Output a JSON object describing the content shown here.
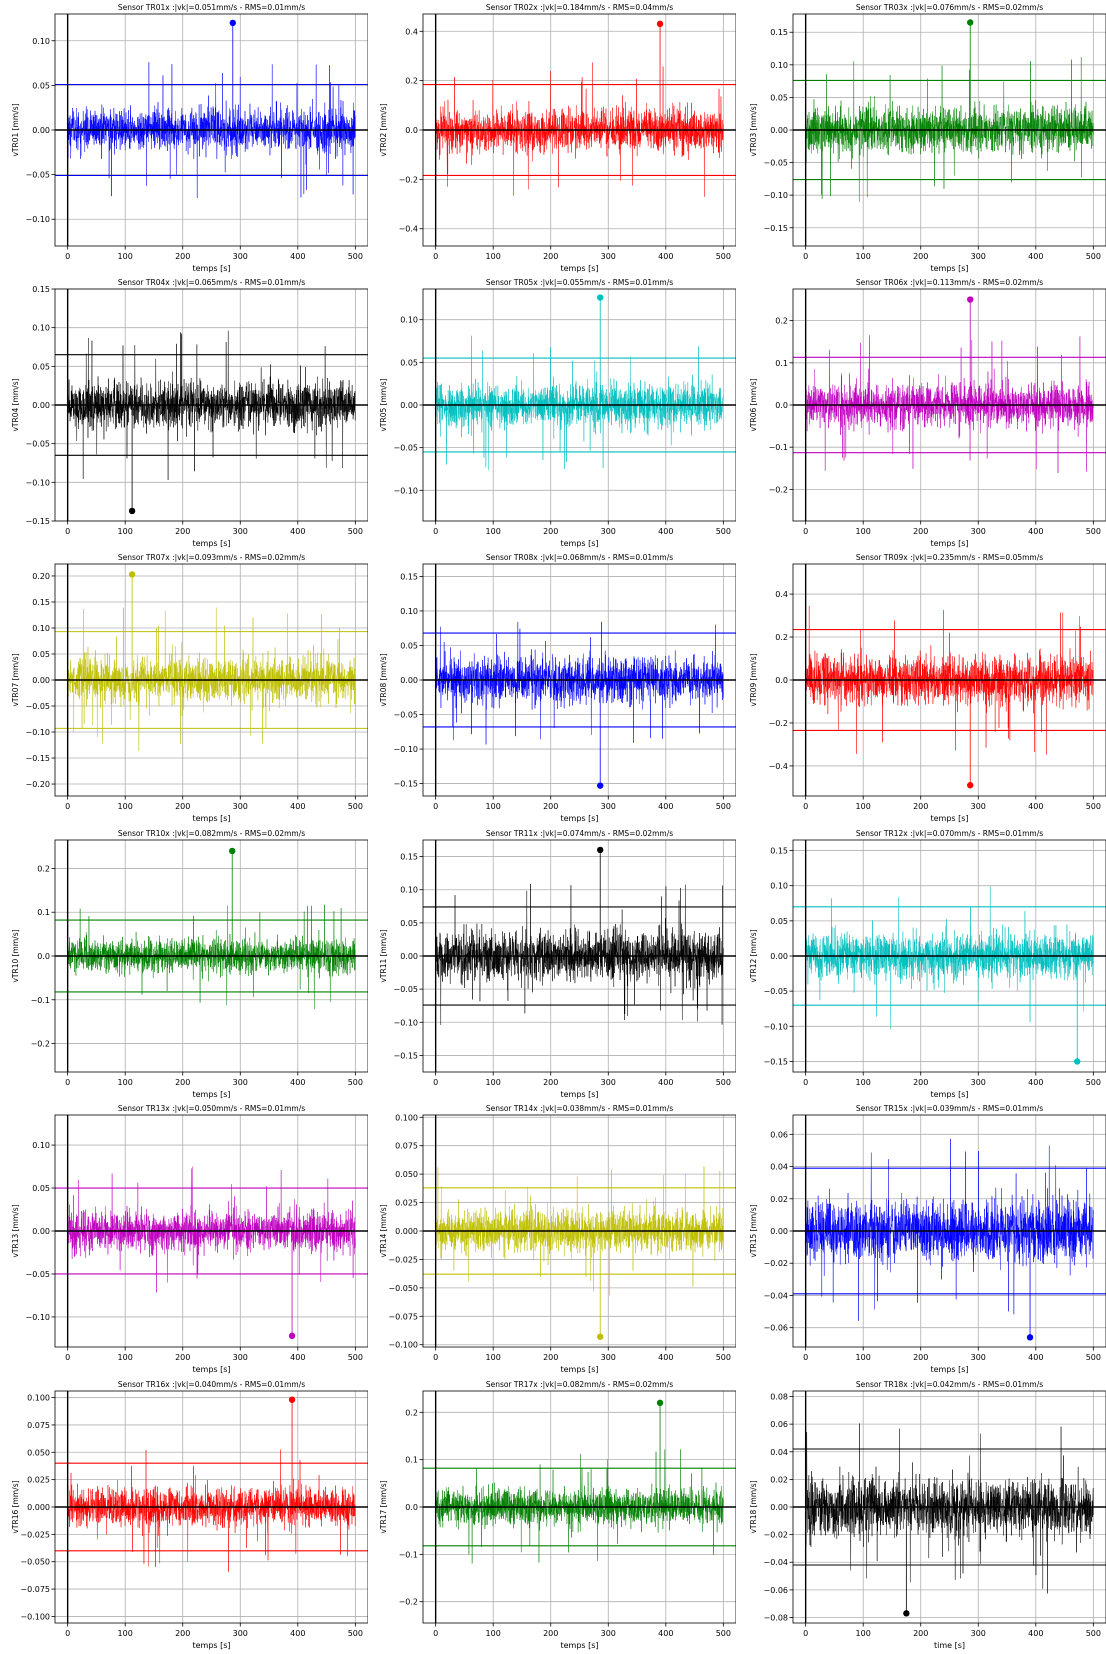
{
  "chart_data": [
    {
      "type": "line",
      "title": "Sensor TR01x :|vk|=0.051mm/s - RMS=0.01mm/s",
      "xlabel": "temps [s]",
      "ylabel": "vTR01 [mm/s]",
      "color": "#0000ff",
      "xlim": [
        -22,
        522
      ],
      "ylim": [
        -0.13,
        0.13
      ],
      "xticks": [
        0,
        100,
        200,
        300,
        400,
        500
      ],
      "yticks": [
        -0.1,
        -0.05,
        0.0,
        0.05,
        0.1
      ],
      "ytick_labels": [
        "−0.10",
        "−0.05",
        "0.00",
        "0.05",
        "0.10"
      ],
      "noise_amp": 0.028,
      "threshold": 0.051,
      "peak": {
        "x": 287,
        "y": 0.12
      }
    },
    {
      "type": "line",
      "title": "Sensor TR02x :|vk|=0.184mm/s - RMS=0.04mm/s",
      "xlabel": "temps [s]",
      "ylabel": "vTR02 [mm/s]",
      "color": "#ff0000",
      "xlim": [
        -22,
        522
      ],
      "ylim": [
        -0.47,
        0.47
      ],
      "xticks": [
        0,
        100,
        200,
        300,
        400,
        500
      ],
      "yticks": [
        -0.4,
        -0.2,
        0.0,
        0.2,
        0.4
      ],
      "ytick_labels": [
        "−0.4",
        "−0.2",
        "0.0",
        "0.2",
        "0.4"
      ],
      "noise_amp": 0.1,
      "threshold": 0.184,
      "peak": {
        "x": 390,
        "y": 0.43
      }
    },
    {
      "type": "line",
      "title": "Sensor TR03x :|vk|=0.076mm/s - RMS=0.02mm/s",
      "xlabel": "temps [s]",
      "ylabel": "vTR03 [mm/s]",
      "color": "#008000",
      "xlim": [
        -22,
        522
      ],
      "ylim": [
        -0.178,
        0.178
      ],
      "xticks": [
        0,
        100,
        200,
        300,
        400,
        500
      ],
      "yticks": [
        -0.15,
        -0.1,
        -0.05,
        0.0,
        0.05,
        0.1,
        0.15
      ],
      "ytick_labels": [
        "−0.15",
        "−0.10",
        "−0.05",
        "0.00",
        "0.05",
        "0.10",
        "0.15"
      ],
      "noise_amp": 0.042,
      "threshold": 0.076,
      "peak": {
        "x": 286,
        "y": 0.165
      }
    },
    {
      "type": "line",
      "title": "Sensor TR04x :|vk|=0.065mm/s - RMS=0.01mm/s",
      "xlabel": "temps [s]",
      "ylabel": "vTR04 [mm/s]",
      "color": "#000000",
      "xlim": [
        -22,
        522
      ],
      "ylim": [
        -0.15,
        0.15
      ],
      "xticks": [
        0,
        100,
        200,
        300,
        400,
        500
      ],
      "yticks": [
        -0.15,
        -0.1,
        -0.05,
        0.0,
        0.05,
        0.1,
        0.15
      ],
      "ytick_labels": [
        "−0.15",
        "−0.10",
        "−0.05",
        "0.00",
        "0.05",
        "0.10",
        "0.15"
      ],
      "noise_amp": 0.036,
      "threshold": 0.065,
      "peak": {
        "x": 112,
        "y": -0.137
      }
    },
    {
      "type": "line",
      "title": "Sensor TR05x :|vk|=0.055mm/s - RMS=0.01mm/s",
      "xlabel": "temps [s]",
      "ylabel": "vTR05 [mm/s]",
      "color": "#00bfbf",
      "xlim": [
        -22,
        522
      ],
      "ylim": [
        -0.136,
        0.136
      ],
      "xticks": [
        0,
        100,
        200,
        300,
        400,
        500
      ],
      "yticks": [
        -0.1,
        -0.05,
        0.0,
        0.05,
        0.1
      ],
      "ytick_labels": [
        "−0.10",
        "−0.05",
        "0.00",
        "0.05",
        "0.10"
      ],
      "noise_amp": 0.03,
      "threshold": 0.055,
      "peak": {
        "x": 286,
        "y": 0.126
      }
    },
    {
      "type": "line",
      "title": "Sensor TR06x :|vk|=0.113mm/s - RMS=0.02mm/s",
      "xlabel": "temps [s]",
      "ylabel": "vTR06 [mm/s]",
      "color": "#bf00bf",
      "xlim": [
        -22,
        522
      ],
      "ylim": [
        -0.275,
        0.275
      ],
      "xticks": [
        0,
        100,
        200,
        300,
        400,
        500
      ],
      "yticks": [
        -0.2,
        -0.1,
        0.0,
        0.1,
        0.2
      ],
      "ytick_labels": [
        "−0.2",
        "−0.1",
        "0.0",
        "0.1",
        "0.2"
      ],
      "noise_amp": 0.06,
      "threshold": 0.113,
      "peak": {
        "x": 286,
        "y": 0.25
      }
    },
    {
      "type": "line",
      "title": "Sensor TR07x :|vk|=0.093mm/s - RMS=0.02mm/s",
      "xlabel": "temps [s]",
      "ylabel": "vTR07 [mm/s]",
      "color": "#bfbf00",
      "xlim": [
        -22,
        522
      ],
      "ylim": [
        -0.223,
        0.223
      ],
      "xticks": [
        0,
        100,
        200,
        300,
        400,
        500
      ],
      "yticks": [
        -0.2,
        -0.15,
        -0.1,
        -0.05,
        0.0,
        0.05,
        0.1,
        0.15,
        0.2
      ],
      "ytick_labels": [
        "−0.20",
        "−0.15",
        "−0.10",
        "−0.05",
        "0.00",
        "0.05",
        "0.10",
        "0.15",
        "0.20"
      ],
      "noise_amp": 0.05,
      "threshold": 0.093,
      "peak": {
        "x": 112,
        "y": 0.203
      }
    },
    {
      "type": "line",
      "title": "Sensor TR08x :|vk|=0.068mm/s - RMS=0.01mm/s",
      "xlabel": "temps [s]",
      "ylabel": "vTR08 [mm/s]",
      "color": "#0000ff",
      "xlim": [
        -22,
        522
      ],
      "ylim": [
        -0.168,
        0.168
      ],
      "xticks": [
        0,
        100,
        200,
        300,
        400,
        500
      ],
      "yticks": [
        -0.15,
        -0.1,
        -0.05,
        0.0,
        0.05,
        0.1,
        0.15
      ],
      "ytick_labels": [
        "−0.15",
        "−0.10",
        "−0.05",
        "0.00",
        "0.05",
        "0.10",
        "0.15"
      ],
      "noise_amp": 0.038,
      "threshold": 0.068,
      "peak": {
        "x": 286,
        "y": -0.153
      }
    },
    {
      "type": "line",
      "title": "Sensor TR09x :|vk|=0.235mm/s - RMS=0.05mm/s",
      "xlabel": "temps [s]",
      "ylabel": "vTR09 [mm/s]",
      "color": "#ff0000",
      "xlim": [
        -22,
        522
      ],
      "ylim": [
        -0.54,
        0.54
      ],
      "xticks": [
        0,
        100,
        200,
        300,
        400,
        500
      ],
      "yticks": [
        -0.4,
        -0.2,
        0.0,
        0.2,
        0.4
      ],
      "ytick_labels": [
        "−0.4",
        "−0.2",
        "0.0",
        "0.2",
        "0.4"
      ],
      "noise_amp": 0.13,
      "threshold": 0.235,
      "peak": {
        "x": 286,
        "y": -0.49
      }
    },
    {
      "type": "line",
      "title": "Sensor TR10x :|vk|=0.082mm/s - RMS=0.02mm/s",
      "xlabel": "temps [s]",
      "ylabel": "vTR10 [mm/s]",
      "color": "#008000",
      "xlim": [
        -22,
        522
      ],
      "ylim": [
        -0.265,
        0.265
      ],
      "xticks": [
        0,
        100,
        200,
        300,
        400,
        500
      ],
      "yticks": [
        -0.2,
        -0.1,
        0.0,
        0.1,
        0.2
      ],
      "ytick_labels": [
        "−0.2",
        "−0.1",
        "0.0",
        "0.1",
        "0.2"
      ],
      "noise_amp": 0.045,
      "threshold": 0.082,
      "peak": {
        "x": 286,
        "y": 0.24
      }
    },
    {
      "type": "line",
      "title": "Sensor TR11x :|vk|=0.074mm/s - RMS=0.02mm/s",
      "xlabel": "temps [s]",
      "ylabel": "vTR11 [mm/s]",
      "color": "#000000",
      "xlim": [
        -22,
        522
      ],
      "ylim": [
        -0.175,
        0.175
      ],
      "xticks": [
        0,
        100,
        200,
        300,
        400,
        500
      ],
      "yticks": [
        -0.15,
        -0.1,
        -0.05,
        0.0,
        0.05,
        0.1,
        0.15
      ],
      "ytick_labels": [
        "−0.15",
        "−0.10",
        "−0.05",
        "0.00",
        "0.05",
        "0.10",
        "0.15"
      ],
      "noise_amp": 0.042,
      "threshold": 0.074,
      "peak": {
        "x": 286,
        "y": 0.16
      }
    },
    {
      "type": "line",
      "title": "Sensor TR12x :|vk|=0.070mm/s - RMS=0.01mm/s",
      "xlabel": "temps [s]",
      "ylabel": "vTR12 [mm/s]",
      "color": "#00bfbf",
      "xlim": [
        -22,
        522
      ],
      "ylim": [
        -0.165,
        0.165
      ],
      "xticks": [
        0,
        100,
        200,
        300,
        400,
        500
      ],
      "yticks": [
        -0.15,
        -0.1,
        -0.05,
        0.0,
        0.05,
        0.1,
        0.15
      ],
      "ytick_labels": [
        "−0.15",
        "−0.10",
        "−0.05",
        "0.00",
        "0.05",
        "0.10",
        "0.15"
      ],
      "noise_amp": 0.038,
      "threshold": 0.07,
      "peak": {
        "x": 472,
        "y": -0.15
      }
    },
    {
      "type": "line",
      "title": "Sensor TR13x :|vk|=0.050mm/s - RMS=0.01mm/s",
      "xlabel": "temps [s]",
      "ylabel": "vTR13 [mm/s]",
      "color": "#bf00bf",
      "xlim": [
        -22,
        522
      ],
      "ylim": [
        -0.135,
        0.135
      ],
      "xticks": [
        0,
        100,
        200,
        300,
        400,
        500
      ],
      "yticks": [
        -0.1,
        -0.05,
        0.0,
        0.05,
        0.1
      ],
      "ytick_labels": [
        "−0.10",
        "−0.05",
        "0.00",
        "0.05",
        "0.10"
      ],
      "noise_amp": 0.028,
      "threshold": 0.05,
      "peak": {
        "x": 390,
        "y": -0.122
      }
    },
    {
      "type": "line",
      "title": "Sensor TR14x :|vk|=0.038mm/s - RMS=0.01mm/s",
      "xlabel": "temps [s]",
      "ylabel": "vTR14 [mm/s]",
      "color": "#bfbf00",
      "xlim": [
        -22,
        522
      ],
      "ylim": [
        -0.102,
        0.102
      ],
      "xticks": [
        0,
        100,
        200,
        300,
        400,
        500
      ],
      "yticks": [
        -0.1,
        -0.075,
        -0.05,
        -0.025,
        0.0,
        0.025,
        0.05,
        0.075,
        0.1
      ],
      "ytick_labels": [
        "−0.100",
        "−0.075",
        "−0.050",
        "−0.025",
        "0.000",
        "0.025",
        "0.050",
        "0.075",
        "0.100"
      ],
      "noise_amp": 0.022,
      "threshold": 0.038,
      "peak": {
        "x": 286,
        "y": -0.093
      }
    },
    {
      "type": "line",
      "title": "Sensor TR15x :|vk|=0.039mm/s - RMS=0.01mm/s",
      "xlabel": "temps [s]",
      "ylabel": "vTR15 [mm/s]",
      "color": "#0000ff",
      "xlim": [
        -22,
        522
      ],
      "ylim": [
        -0.072,
        0.072
      ],
      "xticks": [
        0,
        100,
        200,
        300,
        400,
        500
      ],
      "yticks": [
        -0.06,
        -0.04,
        -0.02,
        0.0,
        0.02,
        0.04,
        0.06
      ],
      "ytick_labels": [
        "−0.06",
        "−0.04",
        "−0.02",
        "0.00",
        "0.02",
        "0.04",
        "0.06"
      ],
      "noise_amp": 0.022,
      "threshold": 0.039,
      "peak": {
        "x": 390,
        "y": -0.066
      }
    },
    {
      "type": "line",
      "title": "Sensor TR16x :|vk|=0.040mm/s - RMS=0.01mm/s",
      "xlabel": "temps [s]",
      "ylabel": "vTR16 [mm/s]",
      "color": "#ff0000",
      "xlim": [
        -22,
        522
      ],
      "ylim": [
        -0.106,
        0.106
      ],
      "xticks": [
        0,
        100,
        200,
        300,
        400,
        500
      ],
      "yticks": [
        -0.1,
        -0.075,
        -0.05,
        -0.025,
        0.0,
        0.025,
        0.05,
        0.075,
        0.1
      ],
      "ytick_labels": [
        "−0.100",
        "−0.075",
        "−0.050",
        "−0.025",
        "0.000",
        "0.025",
        "0.050",
        "0.075",
        "0.100"
      ],
      "noise_amp": 0.022,
      "threshold": 0.04,
      "peak": {
        "x": 390,
        "y": 0.098
      }
    },
    {
      "type": "line",
      "title": "Sensor TR17x :|vk|=0.082mm/s - RMS=0.02mm/s",
      "xlabel": "temps [s]",
      "ylabel": "vTR17 [mm/s]",
      "color": "#008000",
      "xlim": [
        -22,
        522
      ],
      "ylim": [
        -0.245,
        0.245
      ],
      "xticks": [
        0,
        100,
        200,
        300,
        400,
        500
      ],
      "yticks": [
        -0.2,
        -0.1,
        0.0,
        0.1,
        0.2
      ],
      "ytick_labels": [
        "−0.2",
        "−0.1",
        "0.0",
        "0.1",
        "0.2"
      ],
      "noise_amp": 0.045,
      "threshold": 0.082,
      "peak": {
        "x": 390,
        "y": 0.22
      }
    },
    {
      "type": "line",
      "title": "Sensor TR18x :|vk|=0.042mm/s - RMS=0.01mm/s",
      "xlabel": "time [s]",
      "ylabel": "vTR18 [mm/s]",
      "color": "#000000",
      "xlim": [
        -22,
        522
      ],
      "ylim": [
        -0.084,
        0.084
      ],
      "xticks": [
        0,
        100,
        200,
        300,
        400,
        500
      ],
      "yticks": [
        -0.08,
        -0.06,
        -0.04,
        -0.02,
        0.0,
        0.02,
        0.04,
        0.06,
        0.08
      ],
      "ytick_labels": [
        "−0.08",
        "−0.06",
        "−0.04",
        "−0.02",
        "0.00",
        "0.02",
        "0.04",
        "0.06",
        "0.08"
      ],
      "noise_amp": 0.024,
      "threshold": 0.042,
      "peak": {
        "x": 175,
        "y": -0.077
      }
    }
  ]
}
